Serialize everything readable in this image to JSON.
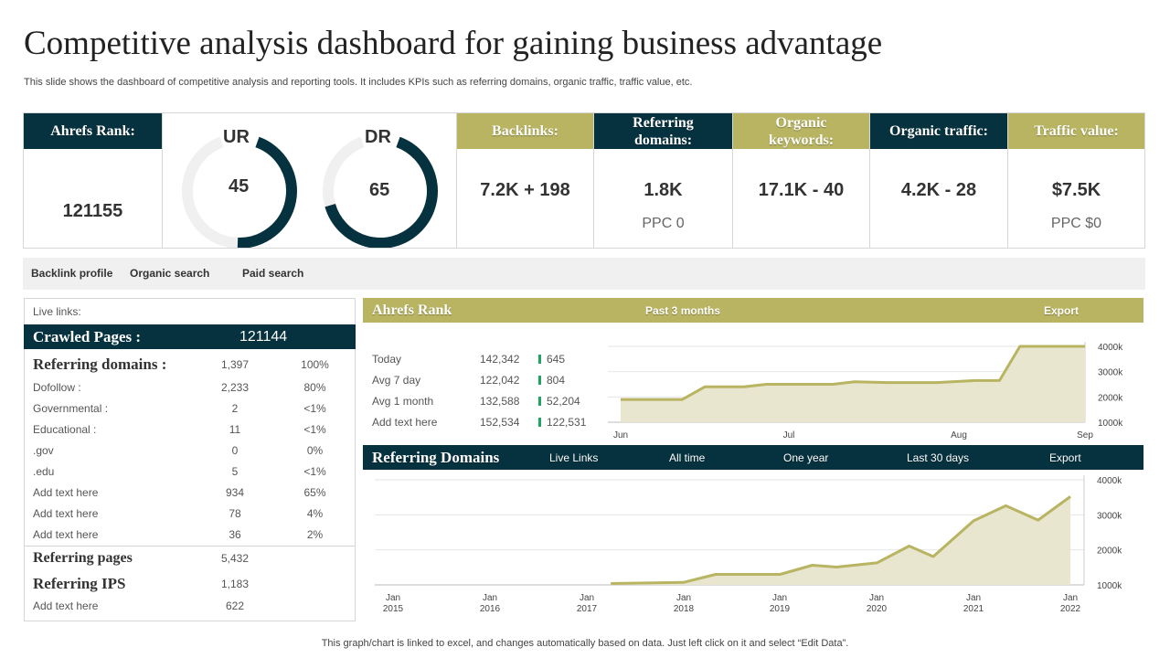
{
  "title": "Competitive analysis dashboard for gaining business advantage",
  "subtitle": "This slide shows the dashboard of competitive  analysis and reporting tools. It includes KPIs such as referring domains, organic traffic, traffic value, etc.",
  "colors": {
    "dark": "#06323f",
    "olive": "#b8b461",
    "fill": "#e8e6cf",
    "up": "#1fa463"
  },
  "kpi": {
    "ahrefs_rank": {
      "label": "Ahrefs Rank:",
      "value": "121155"
    },
    "ur": {
      "label": "UR",
      "value": "45",
      "percent": 45
    },
    "dr": {
      "label": "DR",
      "value": "65",
      "percent": 65
    },
    "backlinks": {
      "label": "Backlinks:",
      "value": "7.2K + 198"
    },
    "referring_domains": {
      "label": "Referring domains:",
      "value": "1.8K",
      "sub": "PPC 0"
    },
    "organic_keywords": {
      "label": "Organic keywords:",
      "value": "17.1K - 40"
    },
    "organic_traffic": {
      "label": "Organic traffic:",
      "value": "4.2K - 28"
    },
    "traffic_value": {
      "label": "Traffic value:",
      "value": "$7.5K",
      "sub": "PPC $0"
    }
  },
  "tabs": [
    "Backlink profile",
    "Organic search",
    "Paid  search"
  ],
  "left": {
    "live_links": "Live links:",
    "crawled_label": "Crawled Pages :",
    "crawled_value": "121144",
    "ref_domains": {
      "label": "Referring domains :",
      "value": "1,397",
      "pct": "100%"
    },
    "rows": [
      {
        "label": "Dofollow :",
        "value": "2,233",
        "pct": "80%"
      },
      {
        "label": "Governmental :",
        "value": "2",
        "pct": "<1%"
      },
      {
        "label": "Educational :",
        "value": "11",
        "pct": "<1%"
      },
      {
        "label": ".gov",
        "value": "0",
        "pct": "0%"
      },
      {
        "label": ".edu",
        "value": "5",
        "pct": "<1%"
      },
      {
        "label": "Add text here",
        "value": "934",
        "pct": "65%"
      },
      {
        "label": "Add text here",
        "value": "78",
        "pct": "4%"
      },
      {
        "label": "Add text here",
        "value": "36",
        "pct": "2%"
      }
    ],
    "ref_pages": {
      "label": "Referring pages",
      "value": "5,432"
    },
    "ref_ips": {
      "label": "Referring IPS",
      "value": "1,183"
    },
    "last": {
      "label": "Add text here",
      "value": "622"
    }
  },
  "rank_panel": {
    "title": "Ahrefs Rank",
    "period": "Past 3 months",
    "export": "Export",
    "stats": [
      {
        "label": "Today",
        "value": "142,342",
        "change": "645"
      },
      {
        "label": "Avg 7 day",
        "value": "122,042",
        "change": "804"
      },
      {
        "label": "Avg 1 month",
        "value": "132,588",
        "change": "52,204"
      },
      {
        "label": "Add text here",
        "value": "152,534",
        "change": "122,531"
      }
    ]
  },
  "domains_panel": {
    "title": "Referring Domains",
    "tabs": [
      "Live Links",
      "All time",
      "One year",
      "Last 30 days",
      "Export"
    ]
  },
  "chart_data": [
    {
      "type": "area",
      "x_ticks": [
        "Jun",
        "Jul",
        "Aug",
        "Sep"
      ],
      "y_ticks": [
        "1000k",
        "2000k",
        "3000k",
        "4000k"
      ],
      "ylim": [
        1000,
        4000
      ],
      "y_unit": "k",
      "grid": true,
      "x": [
        "Jun 1",
        "Jun 12",
        "Jun 16",
        "Jun 23",
        "Jun 27",
        "Jul 9",
        "Jul 13",
        "Jul 19",
        "Jul 28",
        "Aug 5",
        "Aug 11",
        "Aug 16",
        "Sep 1"
      ],
      "values": [
        1900,
        1900,
        2400,
        2400,
        2500,
        2500,
        2600,
        2570,
        2570,
        2650,
        2650,
        4000,
        4000
      ]
    },
    {
      "type": "area",
      "x_ticks": [
        "Jan 2015",
        "Jan 2016",
        "Jan 2017",
        "Jan 2018",
        "Jan 2019",
        "Jan 2020",
        "Jan 2021",
        "Jan 2022"
      ],
      "y_ticks": [
        "1000k",
        "2000k",
        "3000k",
        "4000k"
      ],
      "ylim": [
        1000,
        4000
      ],
      "y_unit": "k",
      "grid": true,
      "x": [
        "2017-04",
        "2018-01",
        "2018-05",
        "2019-01",
        "2019-05",
        "2019-08",
        "2020-01",
        "2020-05",
        "2020-08",
        "2021-01",
        "2021-05",
        "2021-09",
        "2022-01"
      ],
      "values": [
        1040,
        1070,
        1300,
        1300,
        1560,
        1510,
        1630,
        2110,
        1810,
        2830,
        3260,
        2850,
        3520
      ]
    }
  ],
  "footer": "This graph/chart is linked to excel,  and changes automatically based on data. Just left click on it and select “Edit Data”."
}
